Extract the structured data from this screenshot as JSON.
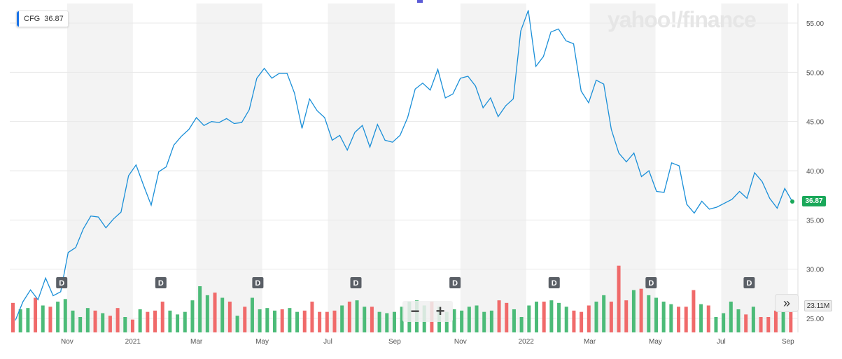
{
  "ticker": {
    "symbol": "CFG",
    "price": "36.87"
  },
  "brand": {
    "logo_text": "yahoo!/finance"
  },
  "controls": {
    "zoom_out": "−",
    "zoom_in": "+",
    "expand": "»"
  },
  "last_price_label": "36.87",
  "volume_label": "23.11M",
  "chart_data": {
    "type": "line",
    "y_axis_ticks": [
      "55.00",
      "50.00",
      "45.00",
      "40.00",
      "35.00",
      "30.00",
      "25.00"
    ],
    "ylim": [
      23.5,
      57
    ],
    "x_ticks": [
      "Nov",
      "2021",
      "Mar",
      "May",
      "Jul",
      "Sep",
      "Nov",
      "2022",
      "Mar",
      "May",
      "Jul",
      "Sep"
    ],
    "x_tick_dates": [
      "2020-11-01",
      "2021-01-01",
      "2021-03-01",
      "2021-05-01",
      "2021-07-01",
      "2021-09-01",
      "2021-11-01",
      "2022-01-01",
      "2022-03-01",
      "2022-05-01",
      "2022-07-01",
      "2022-09-01"
    ],
    "dividend_marker_label": "D",
    "dividend_dates": [
      "2020-10-27",
      "2021-01-27",
      "2021-04-27",
      "2021-07-27",
      "2021-10-27",
      "2022-01-27",
      "2022-04-27",
      "2022-07-27"
    ],
    "grid": true,
    "series": [
      {
        "name": "CFG",
        "color": "#1a8fd8",
        "points": [
          [
            "2020-09-14",
            24.8
          ],
          [
            "2020-09-21",
            26.7
          ],
          [
            "2020-09-28",
            27.9
          ],
          [
            "2020-10-05",
            26.9
          ],
          [
            "2020-10-12",
            29.1
          ],
          [
            "2020-10-19",
            27.3
          ],
          [
            "2020-10-26",
            27.7
          ],
          [
            "2020-11-02",
            31.7
          ],
          [
            "2020-11-09",
            32.2
          ],
          [
            "2020-11-16",
            34.1
          ],
          [
            "2020-11-23",
            35.4
          ],
          [
            "2020-11-30",
            35.3
          ],
          [
            "2020-12-07",
            34.2
          ],
          [
            "2020-12-14",
            35.1
          ],
          [
            "2020-12-21",
            35.8
          ],
          [
            "2020-12-28",
            39.5
          ],
          [
            "2021-01-04",
            40.6
          ],
          [
            "2021-01-11",
            38.5
          ],
          [
            "2021-01-18",
            36.5
          ],
          [
            "2021-01-25",
            39.9
          ],
          [
            "2021-02-01",
            40.4
          ],
          [
            "2021-02-08",
            42.6
          ],
          [
            "2021-02-15",
            43.5
          ],
          [
            "2021-02-22",
            44.2
          ],
          [
            "2021-03-01",
            45.4
          ],
          [
            "2021-03-08",
            44.6
          ],
          [
            "2021-03-15",
            45.0
          ],
          [
            "2021-03-22",
            44.9
          ],
          [
            "2021-03-29",
            45.3
          ],
          [
            "2021-04-05",
            44.8
          ],
          [
            "2021-04-12",
            44.9
          ],
          [
            "2021-04-19",
            46.2
          ],
          [
            "2021-04-26",
            49.4
          ],
          [
            "2021-05-03",
            50.4
          ],
          [
            "2021-05-10",
            49.4
          ],
          [
            "2021-05-17",
            49.9
          ],
          [
            "2021-05-24",
            49.9
          ],
          [
            "2021-05-31",
            47.9
          ],
          [
            "2021-06-07",
            44.3
          ],
          [
            "2021-06-14",
            47.3
          ],
          [
            "2021-06-21",
            46.1
          ],
          [
            "2021-06-28",
            45.4
          ],
          [
            "2021-07-05",
            43.1
          ],
          [
            "2021-07-12",
            43.6
          ],
          [
            "2021-07-19",
            42.1
          ],
          [
            "2021-07-26",
            43.9
          ],
          [
            "2021-08-02",
            44.6
          ],
          [
            "2021-08-09",
            42.4
          ],
          [
            "2021-08-16",
            44.7
          ],
          [
            "2021-08-23",
            43.1
          ],
          [
            "2021-08-30",
            42.9
          ],
          [
            "2021-09-06",
            43.6
          ],
          [
            "2021-09-13",
            45.4
          ],
          [
            "2021-09-20",
            48.3
          ],
          [
            "2021-09-27",
            48.9
          ],
          [
            "2021-10-04",
            48.2
          ],
          [
            "2021-10-11",
            50.3
          ],
          [
            "2021-10-18",
            47.4
          ],
          [
            "2021-10-25",
            47.8
          ],
          [
            "2021-11-01",
            49.4
          ],
          [
            "2021-11-08",
            49.6
          ],
          [
            "2021-11-15",
            48.6
          ],
          [
            "2021-11-22",
            46.4
          ],
          [
            "2021-11-29",
            47.4
          ],
          [
            "2021-12-06",
            45.5
          ],
          [
            "2021-12-13",
            46.6
          ],
          [
            "2021-12-20",
            47.3
          ],
          [
            "2021-12-27",
            54.2
          ],
          [
            "2022-01-03",
            56.3
          ],
          [
            "2022-01-10",
            50.6
          ],
          [
            "2022-01-17",
            51.6
          ],
          [
            "2022-01-24",
            54.1
          ],
          [
            "2022-01-31",
            54.4
          ],
          [
            "2022-02-07",
            53.2
          ],
          [
            "2022-02-14",
            52.9
          ],
          [
            "2022-02-21",
            48.1
          ],
          [
            "2022-02-28",
            46.9
          ],
          [
            "2022-03-07",
            49.2
          ],
          [
            "2022-03-14",
            48.8
          ],
          [
            "2022-03-21",
            44.2
          ],
          [
            "2022-03-28",
            41.8
          ],
          [
            "2022-04-04",
            40.9
          ],
          [
            "2022-04-11",
            41.8
          ],
          [
            "2022-04-18",
            39.4
          ],
          [
            "2022-04-25",
            40.0
          ],
          [
            "2022-05-02",
            37.9
          ],
          [
            "2022-05-09",
            37.8
          ],
          [
            "2022-05-16",
            40.8
          ],
          [
            "2022-05-23",
            40.5
          ],
          [
            "2022-05-30",
            36.6
          ],
          [
            "2022-06-06",
            35.7
          ],
          [
            "2022-06-13",
            36.9
          ],
          [
            "2022-06-20",
            36.1
          ],
          [
            "2022-06-27",
            36.3
          ],
          [
            "2022-07-04",
            36.7
          ],
          [
            "2022-07-11",
            37.1
          ],
          [
            "2022-07-18",
            37.9
          ],
          [
            "2022-07-25",
            37.2
          ],
          [
            "2022-08-01",
            39.8
          ],
          [
            "2022-08-08",
            38.9
          ],
          [
            "2022-08-15",
            37.2
          ],
          [
            "2022-08-22",
            36.2
          ],
          [
            "2022-08-29",
            38.2
          ],
          [
            "2022-09-05",
            36.87
          ]
        ]
      }
    ],
    "volume": {
      "max_millions": 60,
      "up_color": "#4cbb78",
      "down_color": "#f06a6a",
      "bars": [
        [
          23,
          0
        ],
        [
          18,
          1
        ],
        [
          19,
          1
        ],
        [
          27,
          0
        ],
        [
          21,
          1
        ],
        [
          20,
          0
        ],
        [
          24,
          1
        ],
        [
          26,
          1
        ],
        [
          17,
          1
        ],
        [
          12,
          1
        ],
        [
          19,
          1
        ],
        [
          17,
          0
        ],
        [
          15,
          1
        ],
        [
          13,
          0
        ],
        [
          19,
          0
        ],
        [
          12,
          1
        ],
        [
          10,
          0
        ],
        [
          18,
          1
        ],
        [
          16,
          0
        ],
        [
          17,
          0
        ],
        [
          24,
          0
        ],
        [
          17,
          1
        ],
        [
          14,
          1
        ],
        [
          16,
          1
        ],
        [
          25,
          1
        ],
        [
          36,
          1
        ],
        [
          29,
          1
        ],
        [
          31,
          0
        ],
        [
          27,
          1
        ],
        [
          24,
          0
        ],
        [
          13,
          1
        ],
        [
          20,
          0
        ],
        [
          27,
          1
        ],
        [
          18,
          1
        ],
        [
          19,
          1
        ],
        [
          17,
          1
        ],
        [
          18,
          0
        ],
        [
          19,
          1
        ],
        [
          16,
          1
        ],
        [
          17,
          0
        ],
        [
          24,
          0
        ],
        [
          16,
          0
        ],
        [
          16,
          0
        ],
        [
          17,
          0
        ],
        [
          21,
          1
        ],
        [
          24,
          0
        ],
        [
          25,
          1
        ],
        [
          20,
          1
        ],
        [
          20,
          0
        ],
        [
          16,
          1
        ],
        [
          15,
          1
        ],
        [
          16,
          1
        ],
        [
          20,
          1
        ],
        [
          24,
          1
        ],
        [
          25,
          1
        ],
        [
          21,
          1
        ],
        [
          24,
          0
        ],
        [
          20,
          1
        ],
        [
          16,
          1
        ],
        [
          18,
          1
        ],
        [
          17,
          1
        ],
        [
          20,
          1
        ],
        [
          21,
          1
        ],
        [
          16,
          1
        ],
        [
          17,
          1
        ],
        [
          25,
          0
        ],
        [
          23,
          0
        ],
        [
          18,
          1
        ],
        [
          12,
          1
        ],
        [
          21,
          1
        ],
        [
          24,
          1
        ],
        [
          24,
          0
        ],
        [
          25,
          1
        ],
        [
          23,
          1
        ],
        [
          20,
          1
        ],
        [
          17,
          0
        ],
        [
          16,
          0
        ],
        [
          21,
          0
        ],
        [
          24,
          1
        ],
        [
          29,
          1
        ],
        [
          24,
          0
        ],
        [
          52,
          0
        ],
        [
          25,
          0
        ],
        [
          33,
          1
        ],
        [
          34,
          0
        ],
        [
          29,
          1
        ],
        [
          27,
          1
        ],
        [
          24,
          1
        ],
        [
          22,
          1
        ],
        [
          20,
          0
        ],
        [
          20,
          0
        ],
        [
          33,
          0
        ],
        [
          22,
          1
        ],
        [
          21,
          0
        ],
        [
          12,
          1
        ],
        [
          15,
          1
        ],
        [
          24,
          1
        ],
        [
          18,
          1
        ],
        [
          14,
          0
        ],
        [
          20,
          1
        ],
        [
          12,
          0
        ],
        [
          12,
          0
        ],
        [
          17,
          0
        ],
        [
          16,
          1
        ],
        [
          18,
          0
        ]
      ]
    }
  }
}
